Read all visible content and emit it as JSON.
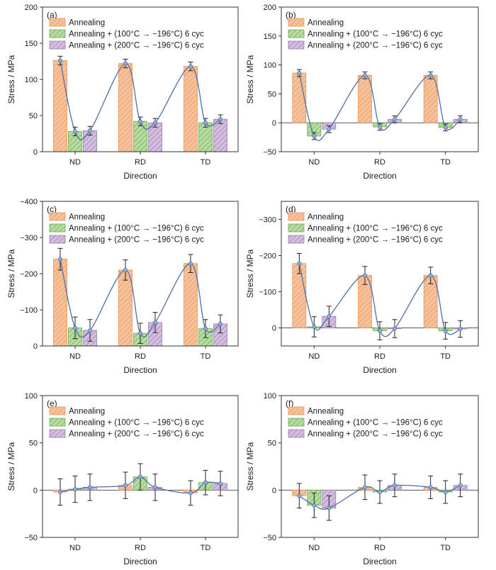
{
  "chart_data": [
    {
      "panel_label": "(a)",
      "type": "bar",
      "categories": [
        "ND",
        "RD",
        "TD"
      ],
      "xlabel": "Direction",
      "ylabel": "Stress / MPa",
      "ylim": [
        0,
        200
      ],
      "yticks": [
        0,
        50,
        100,
        150,
        200
      ],
      "ytick_labels": [
        "0",
        "50",
        "100",
        "150",
        "200"
      ],
      "series": [
        {
          "name": "Annealing",
          "values": [
            126,
            122,
            118
          ],
          "errors": [
            6,
            6,
            6
          ]
        },
        {
          "name": "Annealing + (100°C → −196°C) 6 cyc",
          "values": [
            28,
            42,
            40
          ],
          "errors": [
            6,
            6,
            6
          ]
        },
        {
          "name": "Annealing + (200°C → −196°C) 6 cyc",
          "values": [
            29,
            40,
            45
          ],
          "errors": [
            6,
            6,
            6
          ]
        }
      ],
      "legend_position": "top-left"
    },
    {
      "panel_label": "(b)",
      "type": "bar",
      "categories": [
        "ND",
        "RD",
        "TD"
      ],
      "xlabel": "Direction",
      "ylabel": "Stress / MPa",
      "ylim": [
        -50,
        200
      ],
      "yticks": [
        -50,
        0,
        50,
        100,
        150,
        200
      ],
      "ytick_labels": [
        "−50",
        "0",
        "50",
        "100",
        "150",
        "200"
      ],
      "series": [
        {
          "name": "Annealing",
          "values": [
            86,
            82,
            82
          ],
          "errors": [
            6,
            6,
            6
          ]
        },
        {
          "name": "Annealing + (100°C → −196°C) 6 cyc",
          "values": [
            -23,
            -7,
            -8
          ],
          "errors": [
            6,
            6,
            6
          ]
        },
        {
          "name": "Annealing + (200°C → −196°C) 6 cyc",
          "values": [
            -11,
            6,
            6
          ],
          "errors": [
            6,
            6,
            6
          ]
        }
      ],
      "legend_position": "top-left"
    },
    {
      "panel_label": "(c)",
      "type": "bar",
      "categories": [
        "ND",
        "RD",
        "TD"
      ],
      "xlabel": "Direction",
      "ylabel": "Stress / MPa",
      "ylim": [
        0,
        -400
      ],
      "yticks": [
        0,
        -100,
        -200,
        -300,
        -400
      ],
      "ytick_labels": [
        "0",
        "−100",
        "−200",
        "−300",
        "−400"
      ],
      "series": [
        {
          "name": "Annealing",
          "values": [
            -240,
            -210,
            -228
          ],
          "errors": [
            30,
            28,
            25
          ]
        },
        {
          "name": "Annealing + (100°C → −196°C) 6 cyc",
          "values": [
            -50,
            -35,
            -48
          ],
          "errors": [
            30,
            28,
            25
          ]
        },
        {
          "name": "Annealing + (200°C → −196°C) 6 cyc",
          "values": [
            -43,
            -65,
            -61
          ],
          "errors": [
            30,
            28,
            25
          ]
        }
      ],
      "legend_position": "top-left"
    },
    {
      "panel_label": "(d)",
      "type": "bar",
      "categories": [
        "ND",
        "RD",
        "TD"
      ],
      "xlabel": "Direction",
      "ylabel": "Stress / MPa",
      "ylim": [
        50,
        -350
      ],
      "yticks": [
        0,
        -100,
        -200,
        -300
      ],
      "ytick_labels": [
        "0",
        "−100",
        "−200",
        "−300"
      ],
      "series": [
        {
          "name": "Annealing",
          "values": [
            -178,
            -145,
            -145
          ],
          "errors": [
            28,
            25,
            23
          ]
        },
        {
          "name": "Annealing + (100°C → −196°C) 6 cyc",
          "values": [
            -3,
            8,
            8
          ],
          "errors": [
            28,
            25,
            23
          ]
        },
        {
          "name": "Annealing + (200°C → −196°C) 6 cyc",
          "values": [
            -32,
            2,
            3
          ],
          "errors": [
            28,
            25,
            23
          ]
        }
      ],
      "legend_position": "top-left"
    },
    {
      "panel_label": "(e)",
      "type": "bar",
      "categories": [
        "ND",
        "RD",
        "TD"
      ],
      "xlabel": "Direction",
      "ylabel": "Stress / MPa",
      "ylim": [
        -50,
        100
      ],
      "yticks": [
        -50,
        0,
        50,
        100
      ],
      "ytick_labels": [
        "−50",
        "0",
        "50",
        "100"
      ],
      "series": [
        {
          "name": "Annealing",
          "values": [
            -2,
            5,
            -3
          ],
          "errors": [
            14,
            14,
            13
          ]
        },
        {
          "name": "Annealing + (100°C → −196°C) 6 cyc",
          "values": [
            1,
            14,
            8
          ],
          "errors": [
            14,
            14,
            13
          ]
        },
        {
          "name": "Annealing + (200°C → −196°C) 6 cyc",
          "values": [
            3,
            3,
            7
          ],
          "errors": [
            14,
            14,
            13
          ]
        }
      ],
      "legend_position": "top-left"
    },
    {
      "panel_label": "(f)",
      "type": "bar",
      "categories": [
        "ND",
        "RD",
        "TD"
      ],
      "xlabel": "Direction",
      "ylabel": "Stress / MPa",
      "ylim": [
        -50,
        100
      ],
      "yticks": [
        -50,
        0,
        50,
        100
      ],
      "ytick_labels": [
        "−50",
        "0",
        "50",
        "100"
      ],
      "series": [
        {
          "name": "Annealing",
          "values": [
            -6,
            3,
            3
          ],
          "errors": [
            13,
            13,
            12
          ]
        },
        {
          "name": "Annealing + (100°C → −196°C) 6 cyc",
          "values": [
            -16,
            -2,
            -2
          ],
          "errors": [
            13,
            12,
            12
          ]
        },
        {
          "name": "Annealing + (200°C → −196°C) 6 cyc",
          "values": [
            -19,
            5,
            5
          ],
          "errors": [
            13,
            12,
            12
          ]
        }
      ],
      "legend_position": "top-left"
    }
  ],
  "colors": {
    "annealing_fill": "#f6c29b",
    "annealing_hatch": "#e8935a",
    "cyc100_fill": "#b7dc9f",
    "cyc100_hatch": "#6aaa52",
    "cyc200_fill": "#d4bedf",
    "cyc200_hatch": "#9a7bb0",
    "trend_line": "#4f6fa8",
    "marker": "#8fb0d8",
    "axis": "#333333"
  }
}
